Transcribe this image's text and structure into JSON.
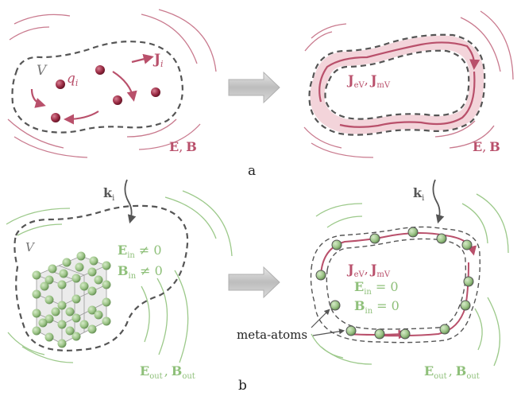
{
  "panel_a": {
    "label": "a",
    "left": {
      "volume_label": "V",
      "charge_label": "q",
      "charge_sub": "i",
      "current_label": "J",
      "current_sub": "i",
      "field_label_1": "E",
      "field_sep": ",",
      "field_label_2": "B"
    },
    "right": {
      "eq_part1": "J",
      "eq_sub1": "eV",
      "eq_sep": ",",
      "eq_part2": "J",
      "eq_sub2": "mV",
      "field_label_1": "E",
      "field_sep": ",",
      "field_label_2": "B"
    }
  },
  "panel_b": {
    "label": "b",
    "left": {
      "k_label": "k",
      "k_sub": "i",
      "volume_label": "V",
      "e_in_main": "E",
      "e_in_sub": "in",
      "e_in_rel": "≠ 0",
      "b_in_main": "B",
      "b_in_sub": "in",
      "b_in_rel": "≠ 0",
      "e_out_main": "E",
      "e_out_sub": "out",
      "out_sep": ",",
      "b_out_main": "B",
      "b_out_sub": "out"
    },
    "right": {
      "k_label": "k",
      "k_sub": "i",
      "eq_part1": "J",
      "eq_sub1": "eV",
      "eq_sep": ",",
      "eq_part2": "J",
      "eq_sub2": "mV",
      "e_in_main": "E",
      "e_in_sub": "in",
      "e_in_rel": "= 0",
      "b_in_main": "B",
      "b_in_sub": "in",
      "b_in_rel": "= 0",
      "meta_label": "meta-atoms",
      "e_out_main": "E",
      "e_out_sub": "out",
      "out_sep": ",",
      "b_out_main": "B",
      "b_out_sub": "out"
    }
  },
  "colors": {
    "pink": "#b9506b",
    "green": "#8fc07a",
    "dash": "#555555",
    "arrow": "#c9c9c9"
  }
}
